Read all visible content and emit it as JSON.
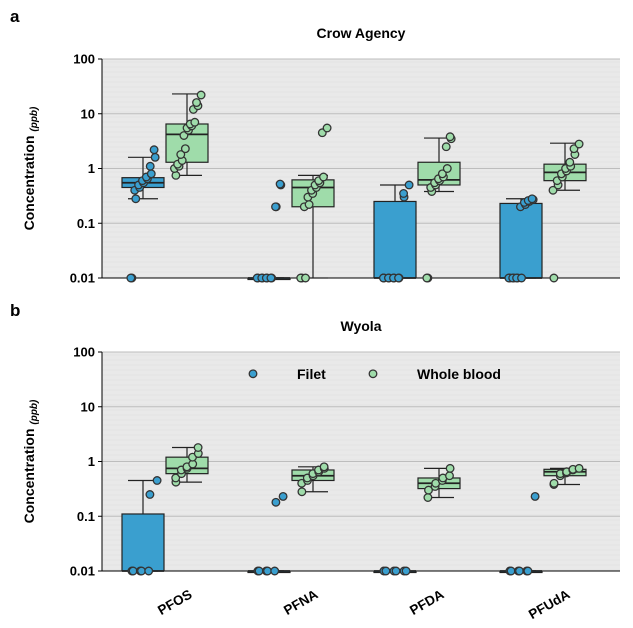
{
  "chart_data": [
    {
      "type": "box",
      "panel_label": "a",
      "title": "Crow Agency",
      "ylabel": "Concentration",
      "ylabel_unit": "(ppb)",
      "yscale": "log",
      "ylim": [
        0.01,
        100
      ],
      "yticks": [
        "0.01",
        "0.1",
        "1",
        "10",
        "100"
      ],
      "categories": [
        "PFOS",
        "PFNA",
        "PFDA",
        "PFUdA"
      ],
      "grid": "horizontal",
      "series": [
        {
          "name": "Filet",
          "color": "#3a9fcf",
          "boxes": [
            {
              "q1": 0.45,
              "median": 0.55,
              "q3": 0.68,
              "whisker_low": 0.28,
              "whisker_high": 1.6
            },
            {
              "q1": 0.01,
              "median": 0.01,
              "q3": 0.01,
              "whisker_low": 0.01,
              "whisker_high": 0.01
            },
            {
              "q1": 0.01,
              "median": 0.01,
              "q3": 0.25,
              "whisker_low": 0.01,
              "whisker_high": 0.5
            },
            {
              "q1": 0.01,
              "median": 0.01,
              "q3": 0.23,
              "whisker_low": 0.01,
              "whisker_high": 0.28
            }
          ],
          "points": [
            [
              0.01,
              0.01,
              0.28,
              0.4,
              0.45,
              0.5,
              0.55,
              0.6,
              0.65,
              0.7,
              0.8,
              1.1,
              1.6,
              2.2
            ],
            [
              0.01,
              0.01,
              0.01,
              0.01,
              0.01,
              0.01,
              0.01,
              0.01,
              0.2,
              0.2,
              0.5,
              0.52
            ],
            [
              0.01,
              0.01,
              0.01,
              0.01,
              0.01,
              0.01,
              0.01,
              0.01,
              0.3,
              0.35,
              0.5
            ],
            [
              0.01,
              0.01,
              0.01,
              0.01,
              0.01,
              0.01,
              0.01,
              0.2,
              0.22,
              0.24,
              0.25,
              0.26,
              0.27,
              0.28
            ]
          ]
        },
        {
          "name": "Whole blood",
          "color": "#9fdcaa",
          "boxes": [
            {
              "q1": 1.3,
              "median": 4.2,
              "q3": 6.5,
              "whisker_low": 0.75,
              "whisker_high": 23
            },
            {
              "q1": 0.2,
              "median": 0.45,
              "q3": 0.62,
              "whisker_low": 0.01,
              "whisker_high": 0.75
            },
            {
              "q1": 0.5,
              "median": 0.62,
              "q3": 1.3,
              "whisker_low": 0.38,
              "whisker_high": 3.6
            },
            {
              "q1": 0.6,
              "median": 0.85,
              "q3": 1.2,
              "whisker_low": 0.4,
              "whisker_high": 2.9
            }
          ],
          "points": [
            [
              0.75,
              1.0,
              1.1,
              1.2,
              1.4,
              1.8,
              2.3,
              4.0,
              5.0,
              5.5,
              6.0,
              6.5,
              7.0,
              12,
              14,
              16,
              22
            ],
            [
              0.01,
              0.01,
              0.01,
              0.2,
              0.22,
              0.3,
              0.35,
              0.4,
              0.45,
              0.5,
              0.55,
              0.6,
              0.7,
              4.5,
              5.5
            ],
            [
              0.01,
              0.01,
              0.38,
              0.45,
              0.5,
              0.55,
              0.6,
              0.65,
              0.7,
              0.8,
              1.0,
              2.5,
              3.5,
              3.8
            ],
            [
              0.01,
              0.4,
              0.5,
              0.6,
              0.7,
              0.8,
              0.9,
              1.0,
              1.1,
              1.3,
              1.8,
              2.3,
              2.8
            ]
          ]
        }
      ]
    },
    {
      "type": "box",
      "panel_label": "b",
      "title": "Wyola",
      "ylabel": "Concentration",
      "ylabel_unit": "(ppb)",
      "yscale": "log",
      "ylim": [
        0.01,
        100
      ],
      "yticks": [
        "0.01",
        "0.1",
        "1",
        "10",
        "100"
      ],
      "categories": [
        "PFOS",
        "PFNA",
        "PFDA",
        "PFUdA"
      ],
      "grid": "horizontal",
      "legend": {
        "position": "top-center",
        "entries": [
          "Filet",
          "Whole blood"
        ]
      },
      "series": [
        {
          "name": "Filet",
          "color": "#3a9fcf",
          "boxes": [
            {
              "q1": 0.01,
              "median": 0.01,
              "q3": 0.11,
              "whisker_low": 0.01,
              "whisker_high": 0.45
            },
            {
              "q1": 0.01,
              "median": 0.01,
              "q3": 0.01,
              "whisker_low": 0.01,
              "whisker_high": 0.01
            },
            {
              "q1": 0.01,
              "median": 0.01,
              "q3": 0.01,
              "whisker_low": 0.01,
              "whisker_high": 0.01
            },
            {
              "q1": 0.01,
              "median": 0.01,
              "q3": 0.01,
              "whisker_low": 0.01,
              "whisker_high": 0.01
            }
          ],
          "points": [
            [
              0.01,
              0.01,
              0.01,
              0.01,
              0.01,
              0.25,
              0.45
            ],
            [
              0.01,
              0.01,
              0.01,
              0.01,
              0.01,
              0.18,
              0.23
            ],
            [
              0.01,
              0.01,
              0.01,
              0.01,
              0.01,
              0.01
            ],
            [
              0.01,
              0.01,
              0.01,
              0.01,
              0.01,
              0.01,
              0.23
            ]
          ]
        },
        {
          "name": "Whole blood",
          "color": "#9fdcaa",
          "boxes": [
            {
              "q1": 0.6,
              "median": 0.75,
              "q3": 1.2,
              "whisker_low": 0.42,
              "whisker_high": 1.8
            },
            {
              "q1": 0.45,
              "median": 0.55,
              "q3": 0.7,
              "whisker_low": 0.28,
              "whisker_high": 0.8
            },
            {
              "q1": 0.32,
              "median": 0.4,
              "q3": 0.5,
              "whisker_low": 0.22,
              "whisker_high": 0.75
            },
            {
              "q1": 0.55,
              "median": 0.65,
              "q3": 0.72,
              "whisker_low": 0.38,
              "whisker_high": 0.75
            }
          ],
          "points": [
            [
              0.42,
              0.5,
              0.6,
              0.7,
              0.75,
              0.8,
              0.9,
              1.2,
              1.4,
              1.8
            ],
            [
              0.28,
              0.4,
              0.45,
              0.5,
              0.55,
              0.6,
              0.65,
              0.7,
              0.75,
              0.8
            ],
            [
              0.22,
              0.3,
              0.35,
              0.4,
              0.45,
              0.5,
              0.55,
              0.75
            ],
            [
              0.38,
              0.4,
              0.55,
              0.6,
              0.62,
              0.65,
              0.7,
              0.72,
              0.75
            ]
          ]
        }
      ]
    }
  ]
}
